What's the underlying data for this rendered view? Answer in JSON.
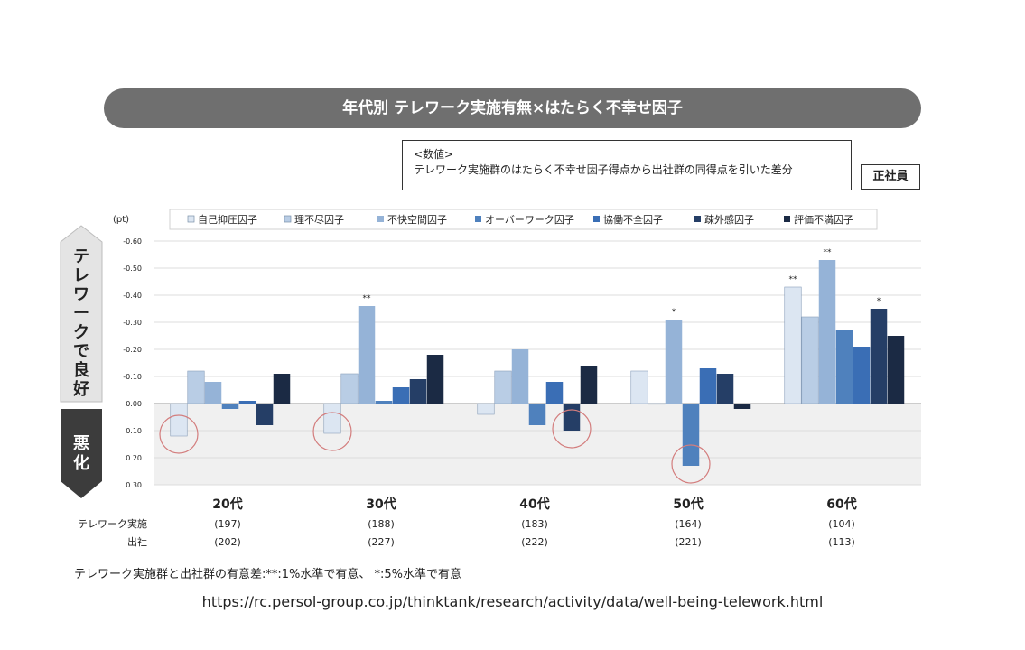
{
  "title": "年代別 テレワーク実施有無×はたらく不幸せ因子",
  "note": {
    "line1": "<数値>",
    "line2": "テレワーク実施群のはたらく不幸せ因子得点から出社群の同得点を引いた差分"
  },
  "employee_label": "正社員",
  "side_labels": {
    "good": "テレワークで良好",
    "bad": "悪化"
  },
  "row_labels": {
    "telework": "テレワーク実施",
    "office": "出社"
  },
  "sig_note": "テレワーク実施群と出社群の有意差:**:1%水準で有意、 *:5%水準で有意",
  "url": "https://rc.persol-group.co.jp/thinktank/research/activity/data/well-being-telework.html",
  "colors": {
    "title_bg": "#6f6f6f",
    "series": [
      "#dce6f2",
      "#b9cde5",
      "#95b3d7",
      "#4f81bd",
      "#3a6eb5",
      "#253e66",
      "#1b2a44"
    ],
    "bad_zone": "#f0f0f0",
    "circle": "#d37d7d"
  },
  "chart_data": {
    "type": "bar",
    "unit_label": "(pt)",
    "categories": [
      "20代",
      "30代",
      "40代",
      "50代",
      "60代"
    ],
    "counts": [
      {
        "telework": "(197)",
        "office": "(202)"
      },
      {
        "telework": "(188)",
        "office": "(227)"
      },
      {
        "telework": "(183)",
        "office": "(222)"
      },
      {
        "telework": "(164)",
        "office": "(221)"
      },
      {
        "telework": "(104)",
        "office": "(113)"
      }
    ],
    "ylim": [
      -0.6,
      0.3
    ],
    "yticks": [
      {
        "v": -0.6,
        "label": "-0.60"
      },
      {
        "v": -0.5,
        "label": "-0.50"
      },
      {
        "v": -0.4,
        "label": "-0.40"
      },
      {
        "v": -0.3,
        "label": "-0.30"
      },
      {
        "v": -0.2,
        "label": "-0.20"
      },
      {
        "v": -0.1,
        "label": "-0.10"
      },
      {
        "v": 0,
        "label": "0.00"
      },
      {
        "v": 0.1,
        "label": "0.10"
      },
      {
        "v": 0.2,
        "label": "0.20"
      },
      {
        "v": 0.3,
        "label": "0.30"
      }
    ],
    "y_inverted": true,
    "series": [
      {
        "name": "自己抑圧因子",
        "values": [
          0.12,
          0.11,
          0.04,
          -0.12,
          -0.43
        ]
      },
      {
        "name": "理不尽因子",
        "values": [
          -0.12,
          -0.11,
          -0.12,
          0.0,
          -0.32
        ]
      },
      {
        "name": "不快空間因子",
        "values": [
          -0.08,
          -0.36,
          -0.2,
          -0.31,
          -0.53
        ]
      },
      {
        "name": "オーバーワーク因子",
        "values": [
          0.02,
          -0.01,
          0.08,
          0.23,
          -0.27
        ]
      },
      {
        "name": "協働不全因子",
        "values": [
          -0.01,
          -0.06,
          -0.08,
          -0.13,
          -0.21
        ]
      },
      {
        "name": "疎外感因子",
        "values": [
          0.08,
          -0.09,
          0.1,
          -0.11,
          -0.35
        ]
      },
      {
        "name": "評価不満因子",
        "values": [
          -0.11,
          -0.18,
          -0.14,
          0.02,
          -0.25
        ]
      }
    ],
    "significance": [
      {
        "group": 1,
        "series": 2,
        "mark": "**"
      },
      {
        "group": 3,
        "series": 2,
        "mark": "*"
      },
      {
        "group": 4,
        "series": 0,
        "mark": "**"
      },
      {
        "group": 4,
        "series": 2,
        "mark": "**"
      },
      {
        "group": 4,
        "series": 5,
        "mark": "*"
      }
    ],
    "highlights": [
      {
        "group": 0,
        "series": 0
      },
      {
        "group": 1,
        "series": 0
      },
      {
        "group": 2,
        "series": 5
      },
      {
        "group": 3,
        "series": 3
      }
    ]
  }
}
